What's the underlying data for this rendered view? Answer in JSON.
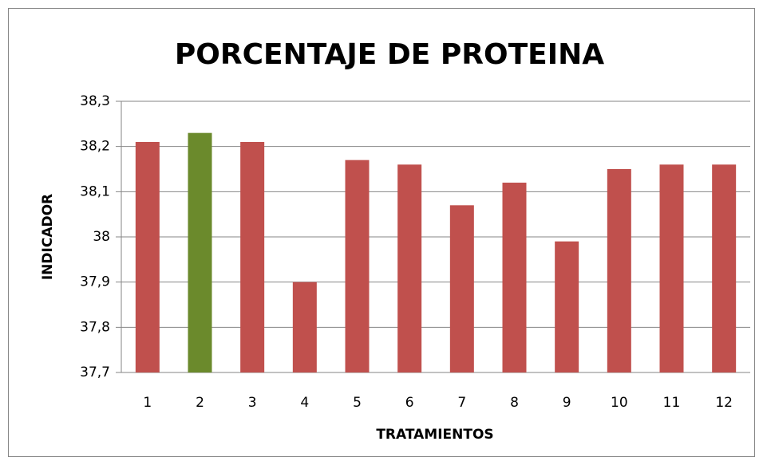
{
  "chart_data": {
    "type": "bar",
    "title": "PORCENTAJE DE PROTEINA",
    "x_label": "TRATAMIENTOS",
    "y_label": "INDICADOR",
    "categories": [
      "1",
      "2",
      "3",
      "4",
      "5",
      "6",
      "7",
      "8",
      "9",
      "10",
      "11",
      "12"
    ],
    "values": [
      38.21,
      38.23,
      38.21,
      37.9,
      38.17,
      38.16,
      38.07,
      38.12,
      37.99,
      38.15,
      38.16,
      38.16
    ],
    "colors": [
      "#c0504d",
      "#6b8a2c",
      "#c0504d",
      "#c0504d",
      "#c0504d",
      "#c0504d",
      "#c0504d",
      "#c0504d",
      "#c0504d",
      "#c0504d",
      "#c0504d",
      "#c0504d"
    ],
    "ylim": [
      37.7,
      38.3
    ],
    "yticks": [
      {
        "value": 37.7,
        "label": "37,7"
      },
      {
        "value": 37.8,
        "label": "37,8"
      },
      {
        "value": 37.9,
        "label": "37,9"
      },
      38,
      {
        "value": 38.1,
        "label": "38,1"
      },
      {
        "value": 38.2,
        "label": "38,2"
      },
      {
        "value": 38.3,
        "label": "38,3"
      }
    ],
    "grid": true
  }
}
